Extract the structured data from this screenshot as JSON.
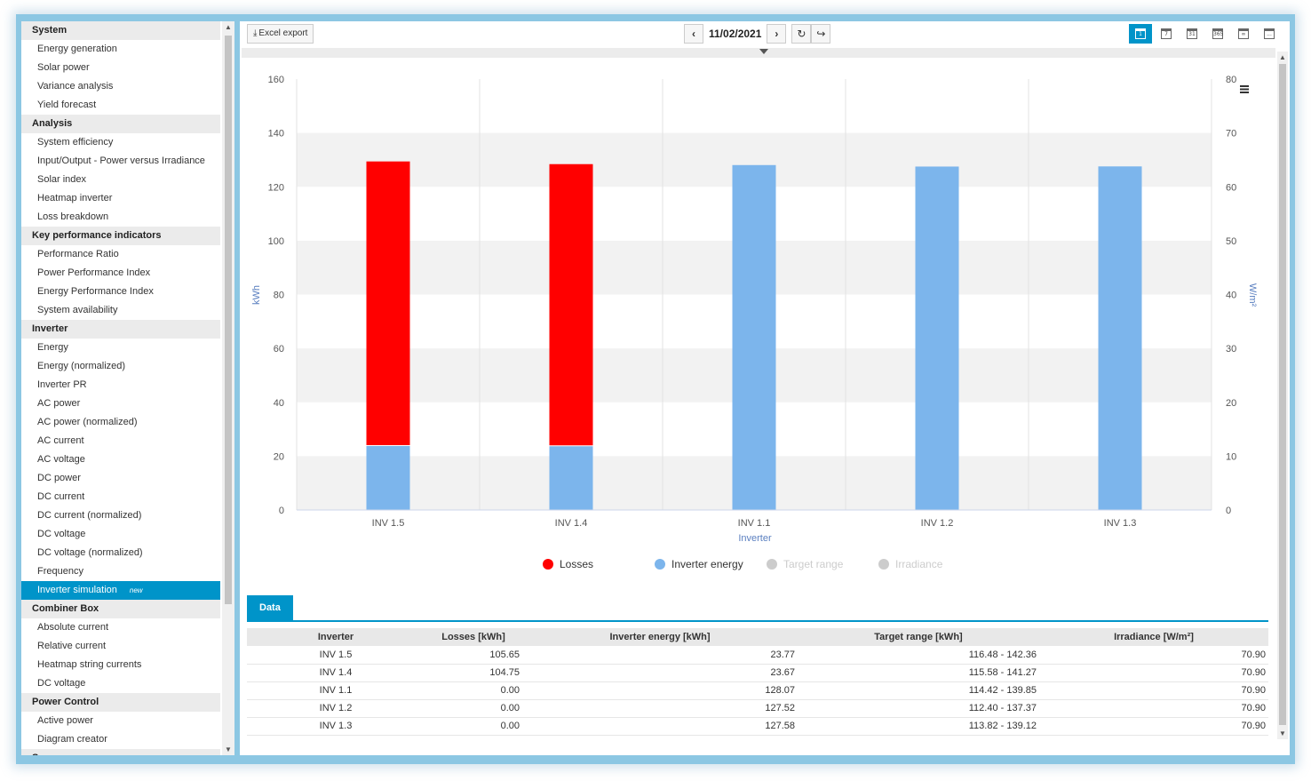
{
  "sidebar": {
    "groups": [
      {
        "title": "System",
        "items": [
          {
            "label": "Energy generation"
          },
          {
            "label": "Solar power"
          },
          {
            "label": "Variance analysis"
          },
          {
            "label": "Yield forecast"
          }
        ]
      },
      {
        "title": "Analysis",
        "items": [
          {
            "label": "System efficiency"
          },
          {
            "label": "Input/Output - Power versus Irradiance"
          },
          {
            "label": "Solar index"
          },
          {
            "label": "Heatmap inverter"
          },
          {
            "label": "Loss breakdown"
          }
        ]
      },
      {
        "title": "Key performance indicators",
        "items": [
          {
            "label": "Performance Ratio"
          },
          {
            "label": "Power Performance Index"
          },
          {
            "label": "Energy Performance Index"
          },
          {
            "label": "System availability"
          }
        ]
      },
      {
        "title": "Inverter",
        "items": [
          {
            "label": "Energy"
          },
          {
            "label": "Energy (normalized)"
          },
          {
            "label": "Inverter PR"
          },
          {
            "label": "AC power"
          },
          {
            "label": "AC power (normalized)"
          },
          {
            "label": "AC current"
          },
          {
            "label": "AC voltage"
          },
          {
            "label": "DC power"
          },
          {
            "label": "DC current"
          },
          {
            "label": "DC current (normalized)"
          },
          {
            "label": "DC voltage"
          },
          {
            "label": "DC voltage (normalized)"
          },
          {
            "label": "Frequency"
          },
          {
            "label": "Inverter simulation",
            "active": true,
            "badge": "new"
          }
        ]
      },
      {
        "title": "Combiner Box",
        "items": [
          {
            "label": "Absolute current"
          },
          {
            "label": "Relative current"
          },
          {
            "label": "Heatmap string currents"
          },
          {
            "label": "DC voltage"
          }
        ]
      },
      {
        "title": "Power Control",
        "items": [
          {
            "label": "Active power"
          },
          {
            "label": "Diagram creator"
          }
        ]
      },
      {
        "title": "Sensors",
        "items": []
      }
    ]
  },
  "toolbar": {
    "excel_label": "Excel export",
    "date": "11/02/2021",
    "prev_icon": "chevron-left-icon",
    "next_icon": "chevron-right-icon",
    "refresh_icon": "refresh-icon",
    "share_icon": "forward-arrow-icon",
    "view_buttons": [
      {
        "name": "day",
        "glyph": "1",
        "active": true
      },
      {
        "name": "week",
        "glyph": "7"
      },
      {
        "name": "month",
        "glyph": "31"
      },
      {
        "name": "year",
        "glyph": "365"
      },
      {
        "name": "total",
        "glyph": "∞"
      },
      {
        "name": "custom",
        "glyph": "..."
      }
    ]
  },
  "chart_data": {
    "type": "bar",
    "stacked": true,
    "categories": [
      "INV 1.5",
      "INV 1.4",
      "INV 1.1",
      "INV 1.2",
      "INV 1.3"
    ],
    "series": [
      {
        "name": "Losses",
        "color": "#ff0000",
        "values": [
          105.65,
          104.75,
          0,
          0,
          0
        ]
      },
      {
        "name": "Inverter energy",
        "color": "#7cb5ec",
        "values": [
          23.77,
          23.67,
          128.07,
          127.52,
          127.58
        ]
      },
      {
        "name": "Target range",
        "color": "#cccccc",
        "hidden": true
      },
      {
        "name": "Irradiance",
        "color": "#cccccc",
        "hidden": true
      }
    ],
    "xlabel": "Inverter",
    "ylabel": "kWh",
    "y2label": "W/m²",
    "ylim": [
      0,
      160
    ],
    "y2lim": [
      0,
      80
    ],
    "yticks": [
      0,
      20,
      40,
      60,
      80,
      100,
      120,
      140,
      160
    ],
    "y2ticks": [
      0,
      10,
      20,
      30,
      40,
      50,
      60,
      70,
      80
    ],
    "grid": "alternating-bands",
    "legend": "bottom-center",
    "menu_icon": "hamburger-menu-icon"
  },
  "tab": {
    "label": "Data"
  },
  "table": {
    "headers": [
      "Inverter",
      "Losses [kWh]",
      "Inverter energy [kWh]",
      "Target range [kWh]",
      "Irradiance [W/m²]"
    ],
    "rows": [
      [
        "INV 1.5",
        "105.65",
        "23.77",
        "116.48 - 142.36",
        "70.90"
      ],
      [
        "INV 1.4",
        "104.75",
        "23.67",
        "115.58 - 141.27",
        "70.90"
      ],
      [
        "INV 1.1",
        "0.00",
        "128.07",
        "114.42 - 139.85",
        "70.90"
      ],
      [
        "INV 1.2",
        "0.00",
        "127.52",
        "112.40 - 137.37",
        "70.90"
      ],
      [
        "INV 1.3",
        "0.00",
        "127.58",
        "113.82 - 139.12",
        "70.90"
      ]
    ]
  }
}
